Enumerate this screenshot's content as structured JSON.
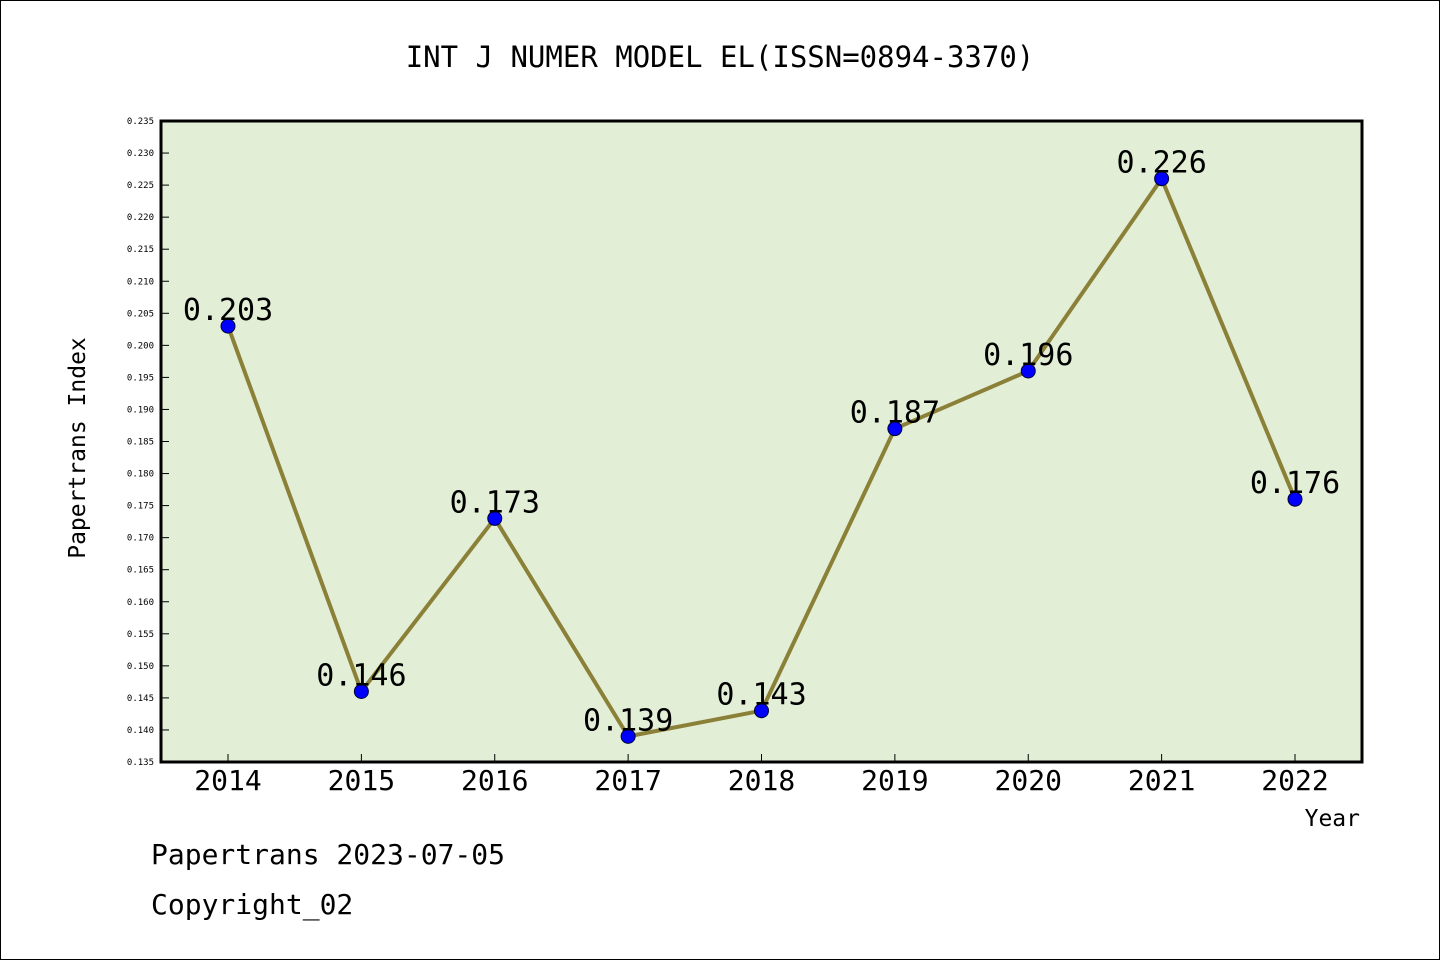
{
  "chart_data": {
    "type": "line",
    "title": "INT J NUMER MODEL EL(ISSN=0894-3370)",
    "xlabel": "Year",
    "ylabel": "Papertrans Index",
    "categories": [
      "2014",
      "2015",
      "2016",
      "2017",
      "2018",
      "2019",
      "2020",
      "2021",
      "2022"
    ],
    "series": [
      {
        "values": [
          0.203,
          0.146,
          0.173,
          0.139,
          0.143,
          0.187,
          0.196,
          0.226,
          0.176
        ],
        "data_labels": [
          "0.203",
          "0.146",
          "0.173",
          "0.139",
          "0.143",
          "0.187",
          "0.196",
          "0.226",
          "0.176"
        ]
      }
    ],
    "ylim": [
      0.135,
      0.235
    ],
    "y_ticks": [
      "0.135",
      "0.140",
      "0.145",
      "0.150",
      "0.155",
      "0.160",
      "0.165",
      "0.170",
      "0.175",
      "0.180",
      "0.185",
      "0.190",
      "0.195",
      "0.200",
      "0.205",
      "0.210",
      "0.215",
      "0.220",
      "0.225",
      "0.230",
      "0.235"
    ],
    "grid": false,
    "legend": "none",
    "colors": {
      "plot_background": "#e2efd6",
      "line": "#8b8038",
      "marker": "#0000ff"
    }
  },
  "footer": {
    "line1": "Papertrans 2023-07-05",
    "line2": "Copyright_02"
  }
}
